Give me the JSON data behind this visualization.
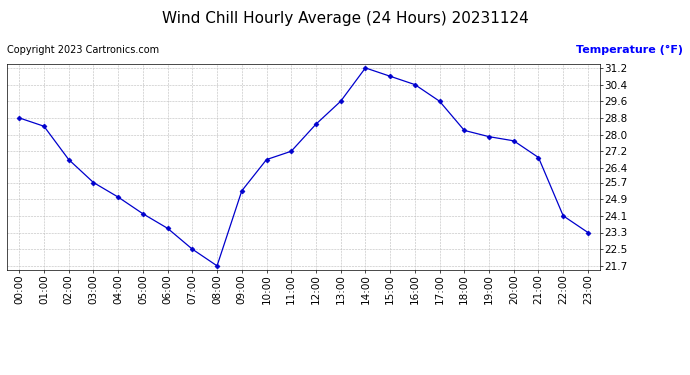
{
  "title": "Wind Chill Hourly Average (24 Hours) 20231124",
  "copyright_text": "Copyright 2023 Cartronics.com",
  "ylabel": "Temperature (°F)",
  "ylabel_color": "#0000ff",
  "hours": [
    "00:00",
    "01:00",
    "02:00",
    "03:00",
    "04:00",
    "05:00",
    "06:00",
    "07:00",
    "08:00",
    "09:00",
    "10:00",
    "11:00",
    "12:00",
    "13:00",
    "14:00",
    "15:00",
    "16:00",
    "17:00",
    "18:00",
    "19:00",
    "20:00",
    "21:00",
    "22:00",
    "23:00"
  ],
  "values": [
    28.8,
    28.4,
    26.8,
    25.7,
    25.0,
    24.2,
    23.5,
    22.5,
    21.7,
    25.3,
    26.8,
    27.2,
    28.5,
    29.6,
    31.2,
    30.8,
    30.4,
    29.6,
    28.2,
    27.9,
    27.7,
    26.9,
    24.1,
    23.3
  ],
  "line_color": "#0000cd",
  "marker": "D",
  "marker_size": 2.5,
  "ylim_min": 21.5,
  "ylim_max": 31.4,
  "yticks": [
    21.7,
    22.5,
    23.3,
    24.1,
    24.9,
    25.7,
    26.4,
    27.2,
    28.0,
    28.8,
    29.6,
    30.4,
    31.2
  ],
  "background_color": "#ffffff",
  "grid_color": "#bbbbbb",
  "title_fontsize": 11,
  "tick_fontsize": 7.5,
  "copyright_fontsize": 7,
  "ylabel_fontsize": 8
}
